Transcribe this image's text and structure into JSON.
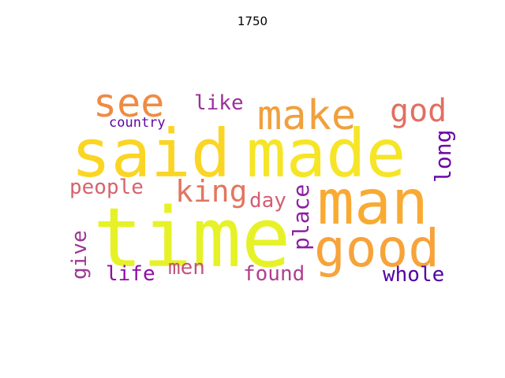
{
  "title": "1750",
  "chart_data": {
    "type": "wordcloud",
    "title": "1750",
    "words": [
      {
        "text": "time",
        "color": "#e6f227"
      },
      {
        "text": "said",
        "color": "#fbd524"
      },
      {
        "text": "made",
        "color": "#f5e526"
      },
      {
        "text": "man",
        "color": "#f9aa33"
      },
      {
        "text": "good",
        "color": "#f7a33a"
      },
      {
        "text": "see",
        "color": "#ef8b44"
      },
      {
        "text": "make",
        "color": "#f0a03d"
      },
      {
        "text": "god",
        "color": "#e16f62"
      },
      {
        "text": "king",
        "color": "#e37660"
      },
      {
        "text": "people",
        "color": "#d6636d"
      },
      {
        "text": "like",
        "color": "#9c2f99"
      },
      {
        "text": "country",
        "color": "#5d04a5"
      },
      {
        "text": "long",
        "color": "#6d06a7"
      },
      {
        "text": "day",
        "color": "#d35f73"
      },
      {
        "text": "place",
        "color": "#8e1ea3"
      },
      {
        "text": "give",
        "color": "#9e3599"
      },
      {
        "text": "life",
        "color": "#900ea4"
      },
      {
        "text": "men",
        "color": "#c4527d"
      },
      {
        "text": "found",
        "color": "#b03f8e"
      },
      {
        "text": "whole",
        "color": "#5102a5"
      }
    ]
  }
}
